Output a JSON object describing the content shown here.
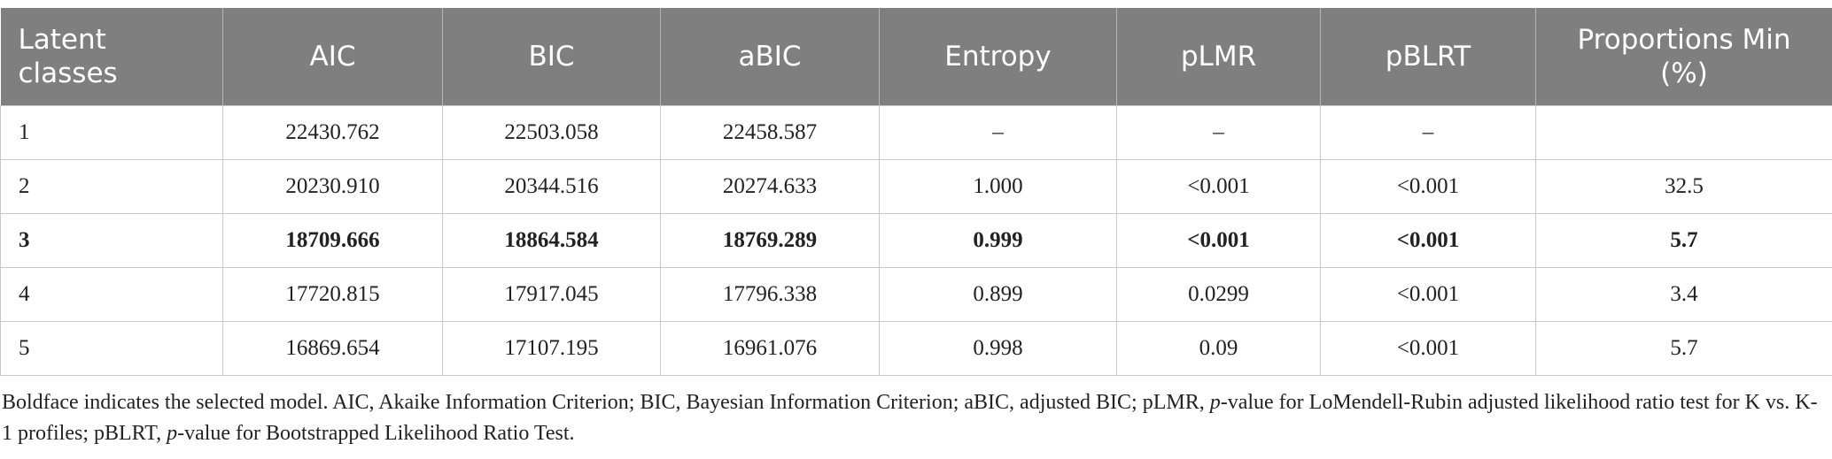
{
  "table": {
    "header": [
      "Latent classes",
      "AIC",
      "BIC",
      "aBIC",
      "Entropy",
      "pLMR",
      "pBLRT",
      "Proportions Min (%)"
    ],
    "rows": [
      [
        "1",
        "22430.762",
        "22503.058",
        "22458.587",
        "–",
        "–",
        "–",
        null
      ],
      [
        "2",
        "20230.910",
        "20344.516",
        "20274.633",
        "1.000",
        "<0.001",
        "<0.001",
        "32.5"
      ],
      [
        "3",
        "18709.666",
        "18864.584",
        "18769.289",
        "0.999",
        "<0.001",
        "<0.001",
        "5.7"
      ],
      [
        "4",
        "17720.815",
        "17917.045",
        "17796.338",
        "0.899",
        "0.0299",
        "<0.001",
        "3.4"
      ],
      [
        "5",
        "16869.654",
        "17107.195",
        "16961.076",
        "0.998",
        "0.09",
        "<0.001",
        "5.7"
      ]
    ]
  },
  "note": [
    "Boldface indicates the selected model. AIC, Akaike Information Criterion; BIC, Bayesian Information Criterion; aBIC, adjusted BIC; pLMR, ",
    "p",
    "-value for LoMendell-Rubin adjusted likelihood ratio test for K vs. K-1 profiles; pBLRT, ",
    "p",
    "-value for Bootstrapped Likelihood Ratio Test."
  ]
}
